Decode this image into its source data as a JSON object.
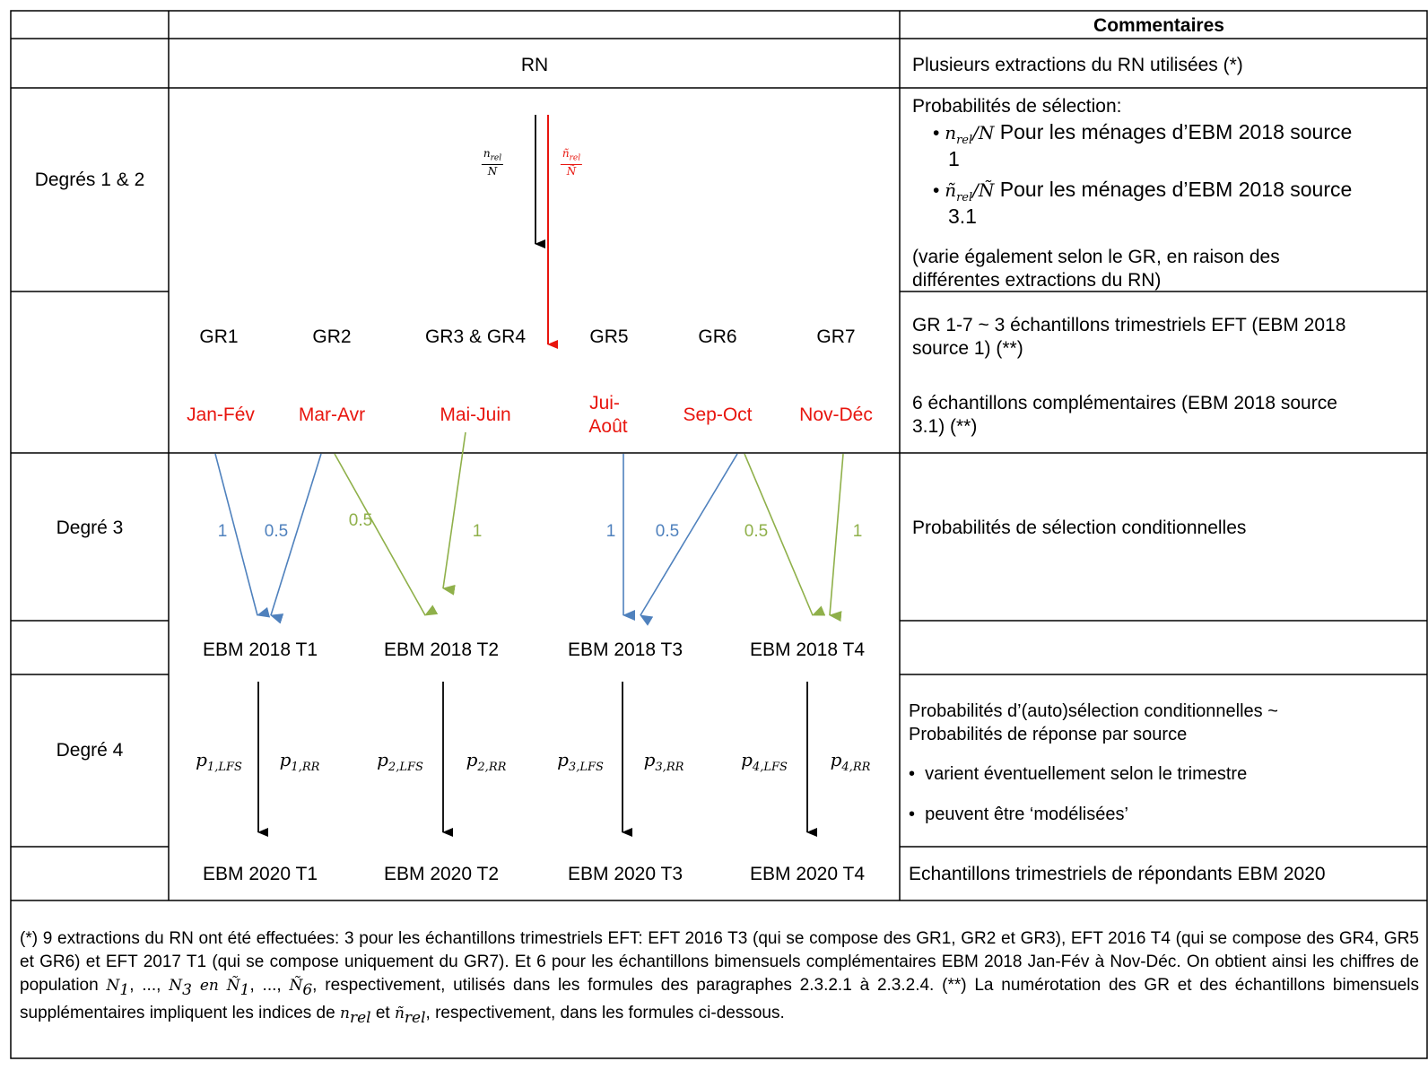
{
  "header": {
    "comments_title": "Commentaires"
  },
  "rows": {
    "rn": {
      "center": "RN",
      "comment": "Plusieurs extractions du RN utilisées (*)"
    },
    "degres12": {
      "label": "Degrés 1 & 2",
      "frac_black_num": "n",
      "frac_black_num_sub": "rel",
      "frac_black_den": "N",
      "frac_red_num": "ñ",
      "frac_red_num_sub": "rel",
      "frac_red_den": "Ñ",
      "comment_intro": "Probabilités de sélection:",
      "bullet1_math": "n",
      "bullet1_sub": "rel",
      "bullet1_den": "/N",
      "bullet1_text": " Pour les ménages d’EBM 2018 source",
      "bullet1_cont": "1",
      "bullet2_math": "ñ",
      "bullet2_sub": "rel",
      "bullet2_den": "/Ñ",
      "bullet2_text": " Pour les ménages d’EBM 2018 source",
      "bullet2_cont": "3.1",
      "note_line1": "(varie également selon le GR, en raison des",
      "note_line2": "différentes extractions du RN)"
    },
    "gr": {
      "groups": [
        "GR1",
        "GR2",
        "GR3 & GR4",
        "GR5",
        "GR6",
        "GR7"
      ],
      "months": [
        "Jan-Fév",
        "Mar-Avr",
        "Mai-Juin",
        "Jui-",
        "Août",
        "Sep-Oct",
        "Nov-Déc"
      ],
      "comment1_line1": "GR 1-7 ~ 3 échantillons trimestriels EFT (EBM 2018",
      "comment1_line2": "source 1) (**)",
      "comment2_line1": "6 échantillons complémentaires (EBM 2018 source",
      "comment2_line2": "3.1) (**)"
    },
    "degre3": {
      "label": "Degré 3",
      "weights": [
        "1",
        "0.5",
        "0.5",
        "1",
        "1",
        "0.5",
        "0.5",
        "1"
      ],
      "comment": "Probabilités de sélection conditionnelles"
    },
    "ebm2018": {
      "quarters": [
        "EBM 2018 T1",
        "EBM 2018 T2",
        "EBM 2018 T3",
        "EBM 2018 T4"
      ]
    },
    "degre4": {
      "label": "Degré 4",
      "probs": [
        {
          "p": "p",
          "sub": "1,LFS"
        },
        {
          "p": "p",
          "sub": "1,RR"
        },
        {
          "p": "p",
          "sub": "2,LFS"
        },
        {
          "p": "p",
          "sub": "2,RR"
        },
        {
          "p": "p",
          "sub": "3,LFS"
        },
        {
          "p": "p",
          "sub": "3,RR"
        },
        {
          "p": "p",
          "sub": "4,LFS"
        },
        {
          "p": "p",
          "sub": "4,RR"
        }
      ],
      "comment_line1": "Probabilités d’(auto)sélection conditionnelles ~",
      "comment_line2": "Probabilités de réponse par source",
      "bullet1": "varient éventuellement selon le trimestre",
      "bullet2": "peuvent être ‘modélisées’"
    },
    "ebm2020": {
      "quarters": [
        "EBM 2020 T1",
        "EBM 2020 T2",
        "EBM 2020 T3",
        "EBM 2020 T4"
      ],
      "comment": "Echantillons trimestriels de répondants EBM 2020"
    }
  },
  "footnote": {
    "p1": "(*) 9 extractions du RN ont été effectuées: 3 pour les échantillons trimestriels EFT: EFT 2016 T3 (qui se compose des GR1, GR2 et GR3), EFT 2016 T4 (qui se compose des GR4, GR5 et GR6) et EFT 2017 T1 (qui se compose uniquement du GR7). Et 6 pour les échantillons bimensuels complémentaires EBM 2018 Jan-Fév à Nov-Déc. On obtient ainsi les chiffres de population ",
    "m1": "N",
    "m1sub": "1",
    "sep1": ", ..., ",
    "m2": "N",
    "m2sub": "3",
    "en": " en ",
    "m3": "Ñ",
    "m3sub": "1",
    "sep2": ", ..., ",
    "m4": "Ñ",
    "m4sub": "6",
    "p2": ", respectivement, utilisés dans les formules des paragraphes 2.3.2.1 à 2.3.2.4. (**) La numérotation des GR et des échantillons bimensuels supplémentaires impliquent les indices de ",
    "m5": "n",
    "m5sub": "rel",
    "et": " et ",
    "m6": "ñ",
    "m6sub": "rel",
    "p3": ", respectivement, dans les formules ci-dessous."
  },
  "colors": {
    "red": "#e8150e",
    "blue": "#4f81bd",
    "green": "#8fb04a",
    "black": "#000000"
  }
}
